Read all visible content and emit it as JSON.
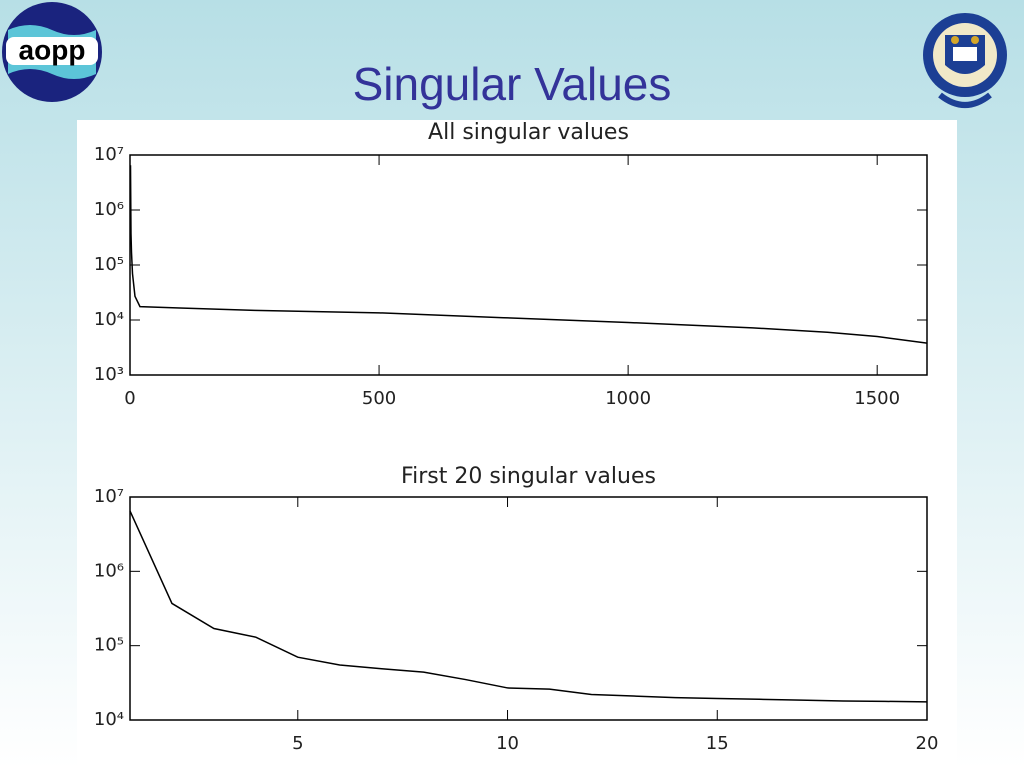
{
  "title": "Singular Values",
  "logo_text": "aopp",
  "chart_data": [
    {
      "type": "line",
      "title": "All singular values",
      "log_y": true,
      "x": [
        1,
        2,
        3,
        5,
        10,
        20,
        100,
        250,
        500,
        750,
        1000,
        1250,
        1400,
        1500,
        1600
      ],
      "series": [
        {
          "color": "#000000",
          "values": [
            6500000,
            370000,
            170000,
            70000,
            27000,
            17500,
            16500,
            15000,
            13500,
            11000,
            9000,
            7200,
            6000,
            5000,
            3800
          ]
        }
      ],
      "xlim": [
        0,
        1600
      ],
      "xticks": [
        0,
        500,
        1000,
        1500
      ],
      "ylim": [
        1000,
        10000000
      ],
      "yticks": [
        {
          "value": 1000,
          "label": "10³"
        },
        {
          "value": 10000,
          "label": "10⁴"
        },
        {
          "value": 100000,
          "label": "10⁵"
        },
        {
          "value": 1000000,
          "label": "10⁶"
        },
        {
          "value": 10000000,
          "label": "10⁷"
        }
      ]
    },
    {
      "type": "line",
      "title": "First 20 singular values",
      "log_y": true,
      "x": [
        1,
        2,
        3,
        4,
        5,
        6,
        7,
        8,
        9,
        10,
        11,
        12,
        13,
        14,
        15,
        16,
        17,
        18,
        19,
        20
      ],
      "series": [
        {
          "color": "#000000",
          "values": [
            6500000,
            370000,
            170000,
            130000,
            70000,
            55000,
            49000,
            44000,
            35000,
            27000,
            26000,
            22000,
            21000,
            20000,
            19500,
            19000,
            18500,
            18000,
            17800,
            17500
          ]
        }
      ],
      "xlim": [
        1,
        20
      ],
      "xticks": [
        5,
        10,
        15,
        20
      ],
      "ylim": [
        10000,
        10000000
      ],
      "yticks": [
        {
          "value": 10000,
          "label": "10⁴"
        },
        {
          "value": 100000,
          "label": "10⁵"
        },
        {
          "value": 1000000,
          "label": "10⁶"
        },
        {
          "value": 10000000,
          "label": "10⁷"
        }
      ]
    }
  ]
}
